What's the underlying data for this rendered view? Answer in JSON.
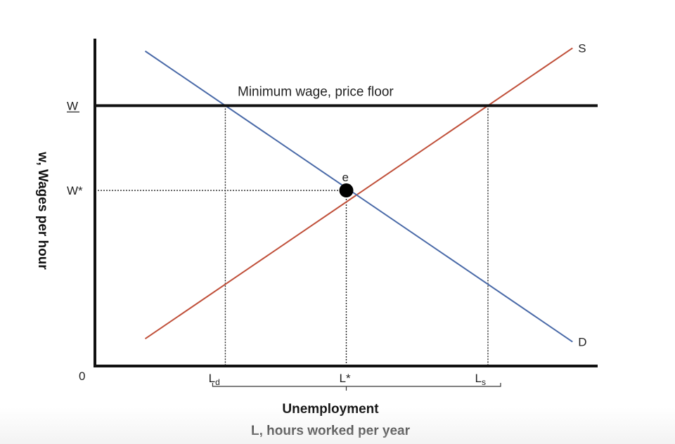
{
  "chart_data": {
    "type": "line",
    "title": "",
    "xlabel": "L, hours worked per year",
    "ylabel": "w, Wages per hour",
    "xlim": [
      0,
      10
    ],
    "ylim": [
      0,
      10
    ],
    "series": [
      {
        "name": "S",
        "color": "#c0503a",
        "x": [
          1,
          9.5
        ],
        "y": [
          0.9,
          10.5
        ]
      },
      {
        "name": "D",
        "color": "#4a6aa8",
        "x": [
          1,
          9.5
        ],
        "y": [
          10.4,
          0.8
        ]
      }
    ],
    "equilibrium": {
      "label": "e",
      "x": 5,
      "y": 5.8
    },
    "price_floor": {
      "label": "Minimum wage, price floor",
      "y": 8.6
    },
    "y_ticks": [
      {
        "label": "W",
        "value": 8.6,
        "underline": true
      },
      {
        "label": "W*",
        "value": 5.8,
        "underline": false
      }
    ],
    "x_ticks": [
      {
        "label": "L",
        "sub": "d",
        "value": 2.4
      },
      {
        "label": "L*",
        "sub": "",
        "value": 5
      },
      {
        "label": "L",
        "sub": "s",
        "value": 7.7
      }
    ],
    "origin_label": "0",
    "bracket_label": "Unemployment"
  }
}
